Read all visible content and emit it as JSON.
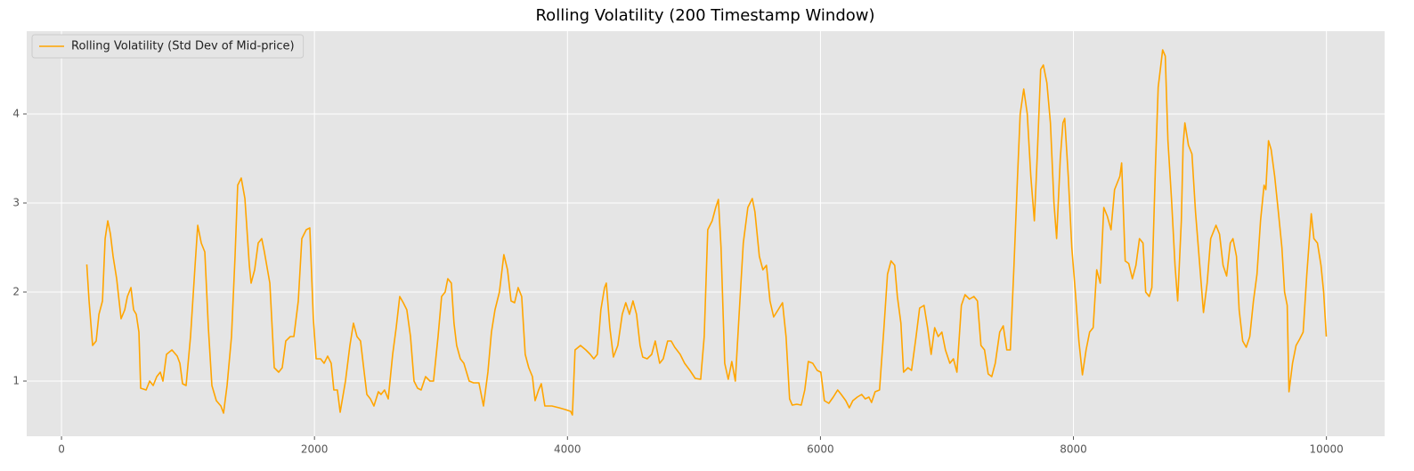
{
  "chart_data": {
    "type": "line",
    "title": "Rolling Volatility (200 Timestamp Window)",
    "x": [
      200,
      218,
      246,
      274,
      296,
      324,
      345,
      366,
      387,
      408,
      436,
      471,
      500,
      521,
      549,
      570,
      591,
      612,
      626,
      669,
      697,
      725,
      753,
      781,
      802,
      830,
      873,
      915,
      936,
      957,
      985,
      1020,
      1056,
      1077,
      1105,
      1133,
      1161,
      1189,
      1224,
      1260,
      1281,
      1309,
      1344,
      1372,
      1393,
      1421,
      1450,
      1485,
      1499,
      1527,
      1555,
      1583,
      1604,
      1647,
      1682,
      1717,
      1745,
      1773,
      1809,
      1837,
      1872,
      1900,
      1935,
      1963,
      1991,
      2013,
      2048,
      2076,
      2104,
      2132,
      2153,
      2181,
      2203,
      2245,
      2280,
      2308,
      2336,
      2364,
      2393,
      2414,
      2442,
      2470,
      2505,
      2526,
      2554,
      2583,
      2618,
      2646,
      2674,
      2702,
      2730,
      2759,
      2787,
      2815,
      2843,
      2878,
      2913,
      2941,
      2977,
      3005,
      3033,
      3054,
      3082,
      3103,
      3124,
      3153,
      3181,
      3223,
      3258,
      3300,
      3336,
      3371,
      3399,
      3427,
      3462,
      3497,
      3526,
      3554,
      3582,
      3610,
      3638,
      3666,
      3694,
      3723,
      3744,
      3772,
      3793,
      3821,
      3877,
      3934,
      3983,
      4025,
      4039,
      4060,
      4103,
      4145,
      4180,
      4208,
      4236,
      4264,
      4293,
      4307,
      4335,
      4363,
      4398,
      4433,
      4461,
      4490,
      4518,
      4546,
      4574,
      4595,
      4630,
      4666,
      4694,
      4729,
      4757,
      4792,
      4820,
      4848,
      4891,
      4926,
      4968,
      5010,
      5053,
      5081,
      5109,
      5144,
      5172,
      5193,
      5214,
      5243,
      5271,
      5299,
      5327,
      5355,
      5390,
      5426,
      5461,
      5482,
      5517,
      5545,
      5573,
      5601,
      5630,
      5665,
      5700,
      5728,
      5756,
      5777,
      5813,
      5848,
      5876,
      5904,
      5939,
      5974,
      6003,
      6031,
      6066,
      6101,
      6136,
      6164,
      6200,
      6228,
      6256,
      6291,
      6326,
      6354,
      6383,
      6404,
      6432,
      6467,
      6502,
      6530,
      6558,
      6587,
      6608,
      6636,
      6657,
      6692,
      6720,
      6756,
      6784,
      6819,
      6847,
      6875,
      6903,
      6931,
      6960,
      6988,
      7023,
      7051,
      7079,
      7114,
      7143,
      7178,
      7213,
      7241,
      7269,
      7297,
      7326,
      7354,
      7382,
      7417,
      7445,
      7473,
      7501,
      7530,
      7558,
      7579,
      7607,
      7635,
      7663,
      7691,
      7713,
      7741,
      7762,
      7790,
      7818,
      7846,
      7867,
      7896,
      7917,
      7931,
      7959,
      7987,
      8015,
      8043,
      8071,
      8100,
      8128,
      8156,
      8184,
      8212,
      8240,
      8268,
      8297,
      8325,
      8367,
      8381,
      8409,
      8437,
      8466,
      8494,
      8522,
      8550,
      8571,
      8599,
      8620,
      8648,
      8670,
      8691,
      8705,
      8726,
      8747,
      8775,
      8803,
      8824,
      8853,
      8867,
      8881,
      8909,
      8937,
      8965,
      8993,
      9028,
      9057,
      9085,
      9127,
      9155,
      9183,
      9211,
      9240,
      9261,
      9289,
      9310,
      9338,
      9366,
      9394,
      9423,
      9451,
      9479,
      9507,
      9521,
      9542,
      9563,
      9591,
      9620,
      9648,
      9669,
      9690,
      9704,
      9732,
      9760,
      9788,
      9816,
      9845,
      9880,
      9901,
      9929,
      9957,
      9978,
      9999
    ],
    "series": [
      {
        "name": "Rolling Volatility (Std Dev of Mid-price)",
        "color": "#ffa500",
        "values": [
          2.31,
          1.9,
          1.4,
          1.45,
          1.75,
          1.9,
          2.6,
          2.8,
          2.65,
          2.4,
          2.15,
          1.7,
          1.8,
          1.95,
          2.05,
          1.8,
          1.75,
          1.55,
          0.92,
          0.9,
          1.0,
          0.95,
          1.05,
          1.1,
          1.0,
          1.3,
          1.35,
          1.28,
          1.2,
          0.97,
          0.95,
          1.5,
          2.3,
          2.75,
          2.55,
          2.45,
          1.6,
          0.95,
          0.78,
          0.72,
          0.64,
          0.95,
          1.5,
          2.4,
          3.2,
          3.28,
          3.05,
          2.3,
          2.1,
          2.25,
          2.55,
          2.6,
          2.45,
          2.1,
          1.15,
          1.1,
          1.15,
          1.45,
          1.5,
          1.5,
          1.9,
          2.6,
          2.7,
          2.72,
          1.7,
          1.25,
          1.25,
          1.2,
          1.28,
          1.2,
          0.9,
          0.9,
          0.65,
          1.0,
          1.4,
          1.65,
          1.5,
          1.45,
          1.1,
          0.85,
          0.8,
          0.72,
          0.88,
          0.85,
          0.9,
          0.8,
          1.3,
          1.6,
          1.95,
          1.88,
          1.8,
          1.5,
          1.0,
          0.92,
          0.9,
          1.05,
          1.0,
          1.0,
          1.5,
          1.95,
          2.0,
          2.15,
          2.1,
          1.65,
          1.4,
          1.25,
          1.2,
          1.0,
          0.98,
          0.98,
          0.72,
          1.1,
          1.55,
          1.8,
          2.0,
          2.42,
          2.25,
          1.9,
          1.88,
          2.05,
          1.95,
          1.3,
          1.15,
          1.05,
          0.78,
          0.9,
          0.97,
          0.72,
          0.72,
          0.7,
          0.68,
          0.66,
          0.62,
          1.35,
          1.4,
          1.35,
          1.3,
          1.25,
          1.3,
          1.8,
          2.05,
          2.1,
          1.6,
          1.27,
          1.4,
          1.75,
          1.88,
          1.75,
          1.9,
          1.75,
          1.4,
          1.27,
          1.25,
          1.3,
          1.45,
          1.2,
          1.25,
          1.45,
          1.45,
          1.38,
          1.3,
          1.2,
          1.12,
          1.03,
          1.02,
          1.5,
          2.7,
          2.8,
          2.95,
          3.04,
          2.5,
          1.2,
          1.02,
          1.22,
          1.0,
          1.7,
          2.55,
          2.95,
          3.05,
          2.9,
          2.4,
          2.25,
          2.3,
          1.9,
          1.72,
          1.8,
          1.88,
          1.5,
          0.8,
          0.73,
          0.74,
          0.73,
          0.9,
          1.22,
          1.2,
          1.12,
          1.1,
          0.78,
          0.75,
          0.82,
          0.9,
          0.85,
          0.78,
          0.7,
          0.78,
          0.82,
          0.85,
          0.8,
          0.82,
          0.76,
          0.88,
          0.9,
          1.6,
          2.2,
          2.35,
          2.3,
          1.95,
          1.65,
          1.1,
          1.15,
          1.12,
          1.5,
          1.82,
          1.85,
          1.6,
          1.3,
          1.6,
          1.5,
          1.55,
          1.35,
          1.2,
          1.25,
          1.1,
          1.85,
          1.97,
          1.92,
          1.95,
          1.9,
          1.4,
          1.35,
          1.08,
          1.05,
          1.2,
          1.55,
          1.62,
          1.35,
          1.35,
          2.3,
          3.3,
          4.0,
          4.28,
          4.0,
          3.3,
          2.8,
          3.5,
          4.5,
          4.55,
          4.35,
          3.9,
          3.0,
          2.6,
          3.5,
          3.9,
          3.95,
          3.3,
          2.5,
          2.0,
          1.45,
          1.07,
          1.35,
          1.55,
          1.6,
          2.25,
          2.1,
          2.95,
          2.85,
          2.7,
          3.15,
          3.3,
          3.45,
          2.35,
          2.32,
          2.15,
          2.3,
          2.6,
          2.55,
          2.0,
          1.95,
          2.05,
          3.4,
          4.3,
          4.55,
          4.72,
          4.65,
          3.7,
          3.05,
          2.3,
          1.9,
          2.8,
          3.65,
          3.9,
          3.65,
          3.55,
          2.9,
          2.4,
          1.77,
          2.1,
          2.6,
          2.75,
          2.65,
          2.3,
          2.18,
          2.55,
          2.6,
          2.4,
          1.8,
          1.45,
          1.38,
          1.5,
          1.9,
          2.2,
          2.8,
          3.2,
          3.15,
          3.7,
          3.6,
          3.3,
          2.9,
          2.5,
          2.0,
          1.85,
          0.88,
          1.2,
          1.4,
          1.47,
          1.55,
          2.2,
          2.88,
          2.6,
          2.55,
          2.3,
          2.0,
          1.5
        ]
      }
    ],
    "xlim": [
      -275,
      10460
    ],
    "ylim": [
      0.38,
      4.93
    ],
    "xticks": [
      0,
      2000,
      4000,
      6000,
      8000,
      10000
    ],
    "yticks": [
      1,
      2,
      3,
      4
    ],
    "grid": true,
    "legend": "upper left"
  }
}
